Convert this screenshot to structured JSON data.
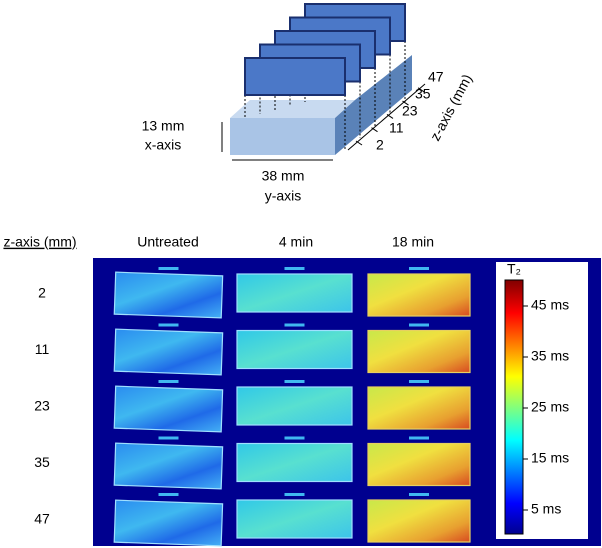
{
  "diagram": {
    "height": "13 mm",
    "height_axis": "x-axis",
    "width": "38 mm",
    "width_axis": "y-axis",
    "depth_axis": "z-axis (mm)",
    "slices": [
      "2",
      "11",
      "23",
      "35",
      "47"
    ]
  },
  "table": {
    "row_header": "z-axis (mm)",
    "columns": [
      "Untreated",
      "4 min",
      "18 min"
    ],
    "rows": [
      "2",
      "11",
      "23",
      "35",
      "47"
    ]
  },
  "colorbar": {
    "title": "T₂",
    "ticks": [
      "45 ms",
      "35 ms",
      "25 ms",
      "15 ms",
      "5 ms"
    ]
  }
}
